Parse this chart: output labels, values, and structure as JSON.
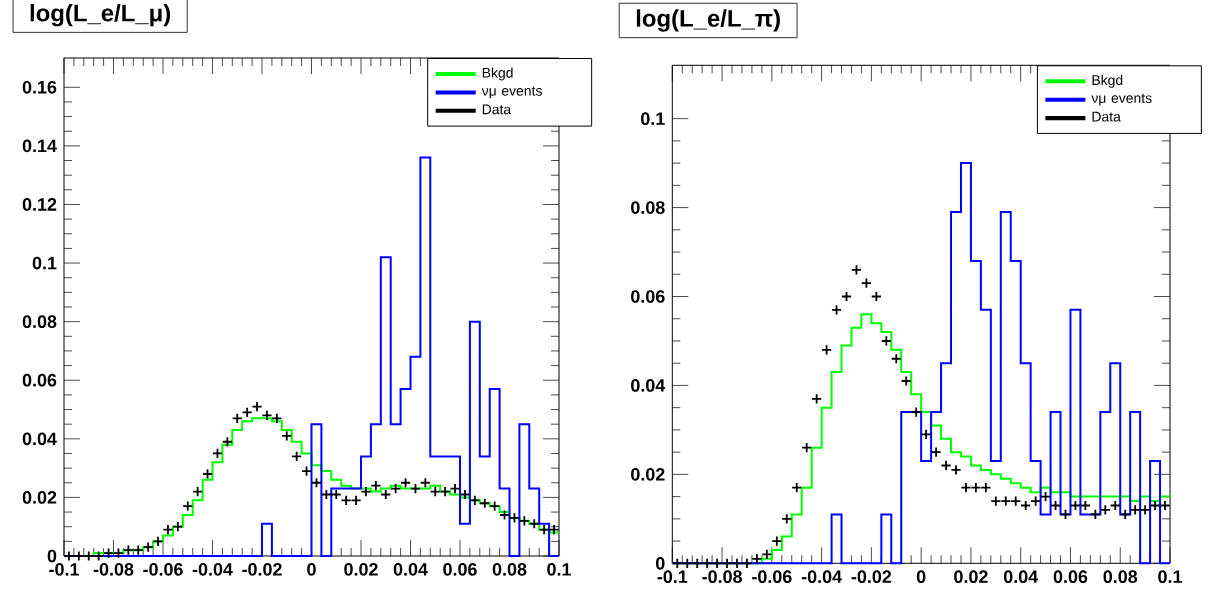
{
  "chart_data": [
    {
      "type": "histogram",
      "title": "log(L_e/L_μ)",
      "legend": "top right",
      "xlim": [
        -0.1,
        0.1
      ],
      "ylim": [
        0,
        0.17
      ],
      "xticks": [
        -0.1,
        -0.08,
        -0.06,
        -0.04,
        -0.02,
        0,
        0.02,
        0.04,
        0.06,
        0.08,
        0.1
      ],
      "yticks": [
        0,
        0.02,
        0.04,
        0.06,
        0.08,
        0.1,
        0.12,
        0.14,
        0.16
      ],
      "bins": [
        -0.1,
        -0.096,
        -0.092,
        -0.088,
        -0.084,
        -0.08,
        -0.076,
        -0.072,
        -0.068,
        -0.064,
        -0.06,
        -0.056,
        -0.052,
        -0.048,
        -0.044,
        -0.04,
        -0.036,
        -0.032,
        -0.028,
        -0.024,
        -0.02,
        -0.016,
        -0.012,
        -0.008,
        -0.004,
        0,
        0.004,
        0.008,
        0.012,
        0.016,
        0.02,
        0.024,
        0.028,
        0.032,
        0.036,
        0.04,
        0.044,
        0.048,
        0.052,
        0.056,
        0.06,
        0.064,
        0.068,
        0.072,
        0.076,
        0.08,
        0.084,
        0.088,
        0.092,
        0.096,
        0.1
      ],
      "series": [
        {
          "name": "Bkgd",
          "color": "#00ff00",
          "values": [
            0,
            0,
            0,
            0.001,
            0.001,
            0.001,
            0.002,
            0.002,
            0.003,
            0.005,
            0.007,
            0.01,
            0.014,
            0.019,
            0.026,
            0.032,
            0.038,
            0.043,
            0.046,
            0.047,
            0.047,
            0.046,
            0.043,
            0.039,
            0.035,
            0.031,
            0.029,
            0.026,
            0.024,
            0.023,
            0.023,
            0.022,
            0.023,
            0.024,
            0.023,
            0.023,
            0.023,
            0.024,
            0.022,
            0.021,
            0.02,
            0.019,
            0.018,
            0.017,
            0.015,
            0.013,
            0.012,
            0.011,
            0.009,
            0.008
          ]
        },
        {
          "name": "νμ events",
          "color": "#0000ff",
          "values": [
            0,
            0,
            0,
            0,
            0,
            0,
            0,
            0,
            0,
            0,
            0,
            0,
            0,
            0,
            0,
            0,
            0,
            0,
            0,
            0,
            0.011,
            0,
            0,
            0,
            0,
            0.045,
            0,
            0.023,
            0.023,
            0.023,
            0.034,
            0.045,
            0.102,
            0.045,
            0.057,
            0.068,
            0.136,
            0.034,
            0.034,
            0.034,
            0.011,
            0.08,
            0.034,
            0.057,
            0.023,
            0,
            0.045,
            0.023,
            0.011,
            0
          ]
        },
        {
          "name": "Data",
          "color": "#000000",
          "type": "scatter",
          "marker": "cross",
          "x": [
            -0.098,
            -0.094,
            -0.09,
            -0.086,
            -0.082,
            -0.078,
            -0.074,
            -0.07,
            -0.066,
            -0.062,
            -0.058,
            -0.054,
            -0.05,
            -0.046,
            -0.042,
            -0.038,
            -0.034,
            -0.03,
            -0.026,
            -0.022,
            -0.018,
            -0.014,
            -0.01,
            -0.006,
            -0.002,
            0.002,
            0.006,
            0.01,
            0.014,
            0.018,
            0.022,
            0.026,
            0.03,
            0.034,
            0.038,
            0.042,
            0.046,
            0.05,
            0.054,
            0.058,
            0.062,
            0.066,
            0.07,
            0.074,
            0.078,
            0.082,
            0.086,
            0.09,
            0.094,
            0.098
          ],
          "values": [
            0,
            0,
            0,
            0,
            0.001,
            0.001,
            0.002,
            0.002,
            0.003,
            0.005,
            0.009,
            0.01,
            0.017,
            0.022,
            0.028,
            0.035,
            0.039,
            0.047,
            0.049,
            0.051,
            0.048,
            0.047,
            0.041,
            0.034,
            0.029,
            0.025,
            0.021,
            0.021,
            0.019,
            0.019,
            0.022,
            0.024,
            0.021,
            0.023,
            0.025,
            0.023,
            0.025,
            0.022,
            0.022,
            0.023,
            0.021,
            0.019,
            0.018,
            0.017,
            0.014,
            0.013,
            0.012,
            0.011,
            0.009,
            0.009
          ]
        }
      ]
    },
    {
      "type": "histogram",
      "title": "log(L_e/L_π)",
      "legend": "top right",
      "xlim": [
        -0.1,
        0.1
      ],
      "ylim": [
        0,
        0.112
      ],
      "xticks": [
        -0.1,
        -0.08,
        -0.06,
        -0.04,
        -0.02,
        0,
        0.02,
        0.04,
        0.06,
        0.08,
        0.1
      ],
      "yticks": [
        0,
        0.02,
        0.04,
        0.06,
        0.08,
        0.1
      ],
      "bins": [
        -0.1,
        -0.096,
        -0.092,
        -0.088,
        -0.084,
        -0.08,
        -0.076,
        -0.072,
        -0.068,
        -0.064,
        -0.06,
        -0.056,
        -0.052,
        -0.048,
        -0.044,
        -0.04,
        -0.036,
        -0.032,
        -0.028,
        -0.024,
        -0.02,
        -0.016,
        -0.012,
        -0.008,
        -0.004,
        0,
        0.004,
        0.008,
        0.012,
        0.016,
        0.02,
        0.024,
        0.028,
        0.032,
        0.036,
        0.04,
        0.044,
        0.048,
        0.052,
        0.056,
        0.06,
        0.064,
        0.068,
        0.072,
        0.076,
        0.08,
        0.084,
        0.088,
        0.092,
        0.096,
        0.1
      ],
      "series": [
        {
          "name": "Bkgd",
          "color": "#00ff00",
          "values": [
            0,
            0,
            0,
            0,
            0,
            0,
            0,
            0,
            0,
            0.001,
            0.003,
            0.006,
            0.011,
            0.017,
            0.026,
            0.035,
            0.043,
            0.049,
            0.053,
            0.056,
            0.054,
            0.052,
            0.048,
            0.043,
            0.038,
            0.034,
            0.031,
            0.028,
            0.025,
            0.024,
            0.022,
            0.021,
            0.02,
            0.019,
            0.018,
            0.017,
            0.016,
            0.017,
            0.016,
            0.016,
            0.015,
            0.015,
            0.015,
            0.015,
            0.015,
            0.015,
            0.014,
            0.015,
            0.014,
            0.015
          ]
        },
        {
          "name": "νμ events",
          "color": "#0000ff",
          "values": [
            0,
            0,
            0,
            0,
            0,
            0,
            0,
            0,
            0,
            0,
            0,
            0,
            0,
            0,
            0,
            0,
            0.011,
            0,
            0,
            0,
            0,
            0.011,
            0,
            0.034,
            0.034,
            0.023,
            0.034,
            0.045,
            0.079,
            0.09,
            0.068,
            0.057,
            0.023,
            0.079,
            0.068,
            0.045,
            0.023,
            0.011,
            0.034,
            0.011,
            0.057,
            0.011,
            0.011,
            0.034,
            0.045,
            0.011,
            0.034,
            0,
            0.023,
            0
          ]
        },
        {
          "name": "Data",
          "color": "#000000",
          "type": "scatter",
          "marker": "cross",
          "x": [
            -0.098,
            -0.094,
            -0.09,
            -0.086,
            -0.082,
            -0.078,
            -0.074,
            -0.07,
            -0.066,
            -0.062,
            -0.058,
            -0.054,
            -0.05,
            -0.046,
            -0.042,
            -0.038,
            -0.034,
            -0.03,
            -0.026,
            -0.022,
            -0.018,
            -0.014,
            -0.01,
            -0.006,
            -0.002,
            0.002,
            0.006,
            0.01,
            0.014,
            0.018,
            0.022,
            0.026,
            0.03,
            0.034,
            0.038,
            0.042,
            0.046,
            0.05,
            0.054,
            0.058,
            0.062,
            0.066,
            0.07,
            0.074,
            0.078,
            0.082,
            0.086,
            0.09,
            0.094,
            0.098
          ],
          "values": [
            0,
            0,
            0,
            0,
            0,
            0,
            0,
            0,
            0.001,
            0.002,
            0.005,
            0.01,
            0.017,
            0.026,
            0.037,
            0.048,
            0.057,
            0.06,
            0.066,
            0.063,
            0.06,
            0.05,
            0.046,
            0.041,
            0.034,
            0.029,
            0.025,
            0.022,
            0.021,
            0.017,
            0.017,
            0.017,
            0.014,
            0.014,
            0.014,
            0.013,
            0.014,
            0.015,
            0.013,
            0.011,
            0.013,
            0.013,
            0.011,
            0.012,
            0.013,
            0.011,
            0.012,
            0.012,
            0.013,
            0.013
          ]
        }
      ]
    }
  ]
}
